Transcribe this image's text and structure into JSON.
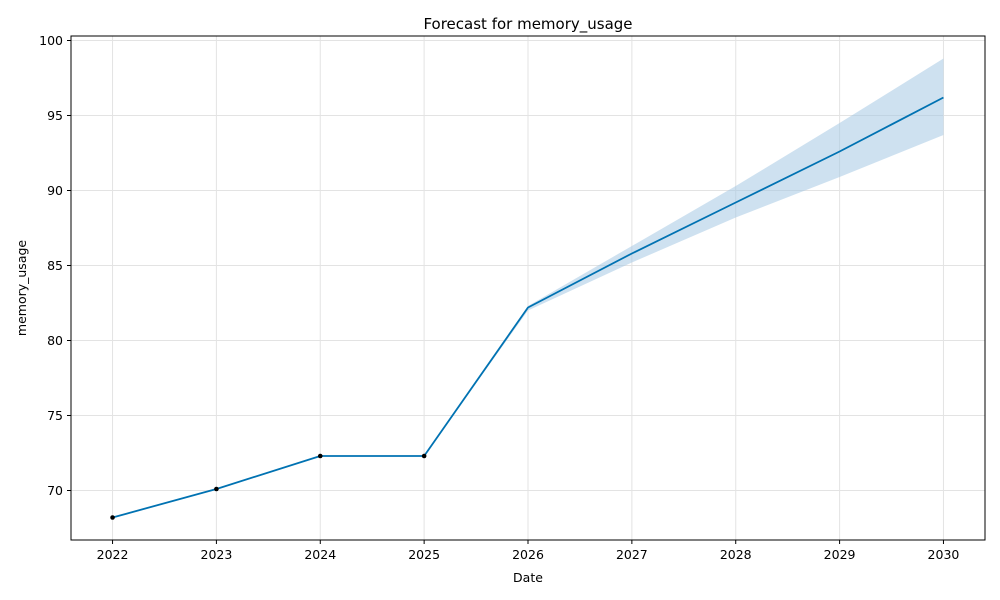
{
  "chart_data": {
    "type": "line",
    "title": "Forecast for memory_usage",
    "xlabel": "Date",
    "ylabel": "memory_usage",
    "grid": true,
    "xlim": [
      2021.6,
      2030.4
    ],
    "ylim": [
      66.7,
      100.3
    ],
    "x_ticks": [
      "2022",
      "2023",
      "2024",
      "2025",
      "2026",
      "2027",
      "2028",
      "2029",
      "2030"
    ],
    "y_ticks": [
      "70",
      "75",
      "80",
      "85",
      "90",
      "95",
      "100"
    ],
    "series": [
      {
        "kind": "observed",
        "x": [
          2022,
          2023,
          2024,
          2025
        ],
        "values": [
          68.2,
          70.1,
          72.3,
          72.3
        ]
      },
      {
        "kind": "forecast",
        "x": [
          2022,
          2023,
          2024,
          2025,
          2026,
          2027,
          2028,
          2029,
          2030
        ],
        "values": [
          68.2,
          70.1,
          72.3,
          72.3,
          82.2,
          85.8,
          89.2,
          92.6,
          96.2
        ],
        "lower": [
          68.2,
          70.1,
          72.3,
          72.3,
          82.0,
          85.2,
          88.2,
          90.9,
          93.7
        ],
        "upper": [
          68.2,
          70.1,
          72.3,
          72.3,
          82.3,
          86.3,
          90.3,
          94.5,
          98.8
        ]
      }
    ],
    "colors": {
      "line": "#0072b2",
      "band": "#a6c9e4",
      "points": "#000000"
    }
  }
}
